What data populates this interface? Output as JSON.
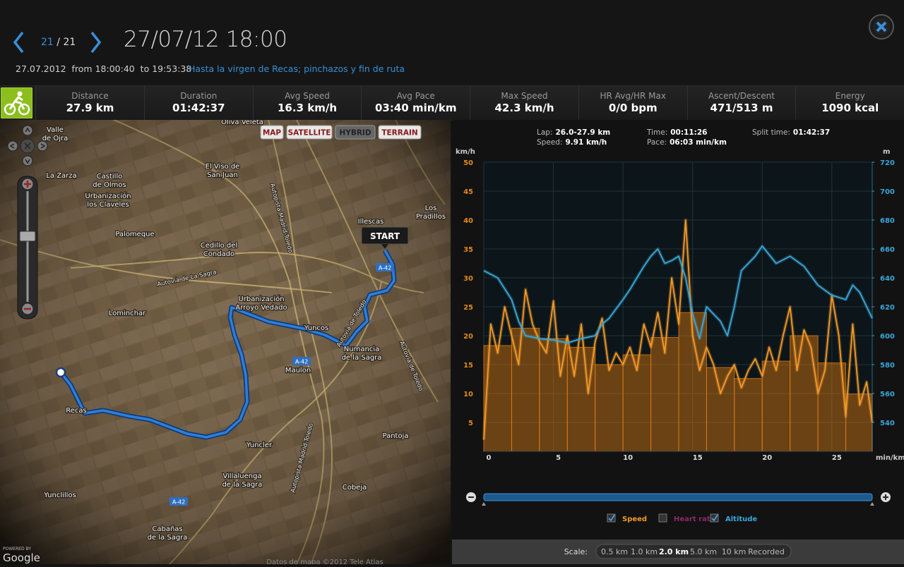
{
  "header": {
    "counter": {
      "current": "21",
      "separator": "/",
      "total": "21"
    },
    "title": "27/07/12 18:00",
    "subtitle": "27.07.2012  from 18:00:40  to 19:53:38",
    "route_name": "Hasta la virgen de Recas; pinchazos y fin de ruta"
  },
  "stats": [
    {
      "label": "Distance",
      "value": "27.9 km"
    },
    {
      "label": "Duration",
      "value": "01:42:37"
    },
    {
      "label": "Avg Speed",
      "value": "16.3 km/h"
    },
    {
      "label": "Avg Pace",
      "value": "03:40 min/km"
    },
    {
      "label": "Max Speed",
      "value": "42.3 km/h"
    },
    {
      "label": "HR Avg/HR Max",
      "value": "0/0 bpm"
    },
    {
      "label": "Ascent/Descent",
      "value": "471/513 m"
    },
    {
      "label": "Energy",
      "value": "1090 kcal"
    }
  ],
  "map": {
    "buttons": [
      "MAP",
      "SATELLITE",
      "HYBRID",
      "TERRAIN"
    ],
    "active_button": "HYBRID",
    "start_label": "START",
    "labels": [
      {
        "lines": [
          "Oliva Veleta"
        ]
      },
      {
        "lines": [
          "Valle",
          "de Ojra"
        ]
      },
      {
        "lines": [
          "La Zarza"
        ]
      },
      {
        "lines": [
          "Castillo",
          "de Olmos"
        ]
      },
      {
        "lines": [
          "Urbanización",
          "los Claveles"
        ]
      },
      {
        "lines": [
          "El Viso de",
          "San Juan"
        ]
      },
      {
        "lines": [
          "Illescas"
        ]
      },
      {
        "lines": [
          "Los",
          "Pradillos"
        ]
      },
      {
        "lines": [
          "Palomeque"
        ]
      },
      {
        "lines": [
          "Cedillo del",
          "Condado"
        ]
      },
      {
        "lines": [
          "Urbanización",
          "Arroyo Vedado"
        ]
      },
      {
        "lines": [
          "Lominchar"
        ]
      },
      {
        "lines": [
          "Yuncos"
        ]
      },
      {
        "lines": [
          "Numancia",
          "de la Sagra"
        ]
      },
      {
        "lines": [
          "Maulon"
        ]
      },
      {
        "lines": [
          "Recas"
        ]
      },
      {
        "lines": [
          "Yuncler"
        ]
      },
      {
        "lines": [
          "Pantoja"
        ]
      },
      {
        "lines": [
          "Villaluenga",
          "de la Sagra"
        ]
      },
      {
        "lines": [
          "Cobeja"
        ]
      },
      {
        "lines": [
          "Yunclillos"
        ]
      },
      {
        "lines": [
          "Cabañas",
          "de la Sagra"
        ]
      }
    ],
    "roads": [
      "Autovía de La Sagra",
      "Autopista Madrid-Toledo",
      "Autovía de Toledo",
      "Autopista Madrid-Toledo",
      "Autovía de Toledo"
    ],
    "shields": [
      "A-42",
      "A-42",
      "A-42"
    ],
    "powered_by": "POWERED BY",
    "google": "Google",
    "attribution": "Datos de mapa ©2012 Tele Atlas"
  },
  "chart_data": {
    "type": "combo",
    "lap_info": [
      {
        "label": "Lap:",
        "value": "26.0-27.9 km"
      },
      {
        "label": "Speed:",
        "value": "9.91 km/h"
      },
      {
        "label": "Time:",
        "value": "00:11:26"
      },
      {
        "label": "Pace:",
        "value": "06:03 min/km"
      },
      {
        "label": "Split time:",
        "value": "01:42:37"
      }
    ],
    "y_label": "km/h",
    "y2_label": "m",
    "x_label": "min/km",
    "xlim": [
      0,
      27.9
    ],
    "xticks": [
      0,
      5,
      10,
      15,
      20,
      25
    ],
    "ylim": [
      0,
      50
    ],
    "yticks": [
      5,
      10,
      15,
      20,
      25,
      30,
      35,
      40,
      45,
      50
    ],
    "y2lim": [
      520,
      720
    ],
    "y2ticks": [
      540,
      560,
      580,
      600,
      620,
      640,
      660,
      680,
      700,
      720
    ],
    "grid": true,
    "series": [
      {
        "type": "bar",
        "color": "#e07a10",
        "bins": [
          0,
          2,
          4,
          6,
          8,
          10,
          12,
          14,
          16,
          18,
          20,
          22,
          24,
          26,
          27.9
        ],
        "values": [
          18.3,
          21.3,
          19.5,
          18,
          15,
          16.7,
          19.7,
          24,
          14.5,
          12.6,
          15.6,
          20,
          15.3,
          9.91
        ]
      },
      {
        "type": "line",
        "color": "#f39a2a",
        "x": [
          0,
          0.5,
          1,
          1.5,
          2,
          2.5,
          3,
          3.5,
          4,
          4.5,
          5,
          5.5,
          6,
          6.5,
          7,
          7.5,
          8,
          8.5,
          9,
          9.5,
          10,
          10.5,
          11,
          11.5,
          12,
          12.5,
          13,
          13.5,
          14,
          14.5,
          15,
          15.5,
          16,
          16.5,
          17,
          17.5,
          18,
          18.5,
          19,
          19.5,
          20,
          20.5,
          21,
          21.5,
          22,
          22.5,
          23,
          23.5,
          24,
          24.5,
          25,
          25.5,
          26,
          26.5,
          27,
          27.5,
          27.9
        ],
        "values": [
          2,
          22,
          17,
          25,
          20,
          15,
          28,
          22,
          19,
          17,
          26,
          13,
          20,
          13,
          22,
          10,
          19,
          23,
          14,
          17,
          15,
          18,
          14,
          22,
          18,
          24,
          17,
          30,
          22,
          40,
          20,
          14,
          18,
          15,
          10,
          13,
          15,
          11,
          14,
          16,
          13,
          18,
          14,
          20,
          25,
          14,
          21,
          18,
          10,
          14,
          27,
          20,
          6,
          22,
          8,
          12,
          5
        ]
      },
      {
        "type": "line",
        "axis": "y2",
        "color": "#3aa6d8",
        "x": [
          0,
          1,
          2,
          2.5,
          3,
          4,
          5,
          6,
          7,
          8,
          8.5,
          9,
          10,
          10.5,
          11,
          11.5,
          12,
          12.5,
          13,
          13.5,
          14,
          14.5,
          15,
          15.5,
          16,
          17,
          17.5,
          18,
          18.5,
          19,
          19.5,
          20,
          21,
          22,
          23,
          24,
          25,
          26,
          26.5,
          27,
          27.9
        ],
        "values": [
          645,
          640,
          625,
          610,
          600,
          598,
          597,
          595,
          598,
          600,
          608,
          612,
          625,
          632,
          640,
          648,
          655,
          660,
          650,
          652,
          655,
          640,
          615,
          598,
          620,
          610,
          600,
          620,
          645,
          650,
          655,
          662,
          650,
          655,
          648,
          635,
          628,
          625,
          635,
          630,
          612
        ]
      }
    ],
    "legend": [
      {
        "label": "Speed",
        "checked": true,
        "color": "#f39a2a"
      },
      {
        "label": "Heart rate",
        "checked": false,
        "color": "#8a2a6a"
      },
      {
        "label": "Altitude",
        "checked": true,
        "color": "#3aa6d8"
      }
    ]
  },
  "scale": {
    "label": "Scale:",
    "options": [
      "0.5 km",
      "1.0 km",
      "2.0 km",
      "5.0 km",
      "10 km",
      "Recorded"
    ],
    "active": "2.0 km"
  }
}
